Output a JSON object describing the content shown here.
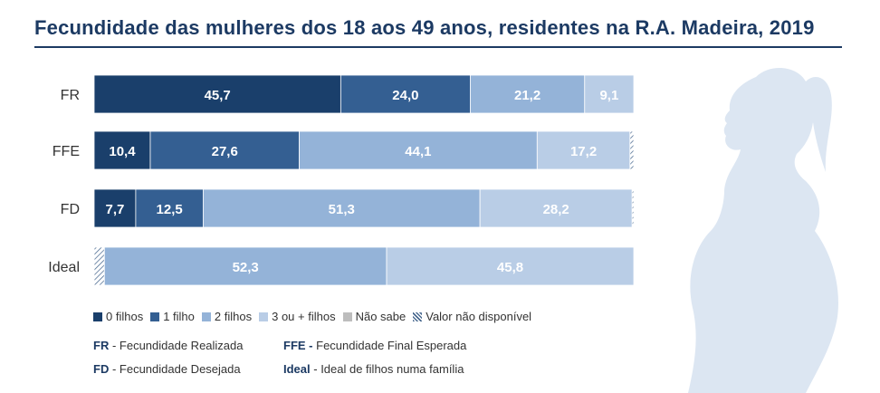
{
  "title": "Fecundidade das mulheres dos 18 aos 49 anos, residentes na R.A. Madeira, 2019",
  "chart_data": {
    "type": "bar",
    "orientation": "horizontal",
    "stacked": true,
    "title": "Fecundidade das mulheres dos 18 aos 49 anos, residentes na R.A. Madeira, 2019",
    "categories": [
      "FR",
      "FFE",
      "FD",
      "Ideal"
    ],
    "series": [
      {
        "name": "0 filhos",
        "color": "#1a3f6b",
        "values": [
          45.7,
          10.4,
          7.7,
          null
        ]
      },
      {
        "name": "1 filho",
        "color": "#345f92",
        "values": [
          24.0,
          27.6,
          12.5,
          null
        ]
      },
      {
        "name": "2 filhos",
        "color": "#94b3d8",
        "values": [
          21.2,
          44.1,
          51.3,
          52.3
        ]
      },
      {
        "name": "3 ou + filhos",
        "color": "#b9cde6",
        "values": [
          9.1,
          17.2,
          28.2,
          45.8
        ]
      },
      {
        "name": "Não sabe",
        "color": "#bdbdbd",
        "values": [
          null,
          null,
          null,
          null
        ]
      },
      {
        "name": "Valor não disponível",
        "pattern": "hatched",
        "values": [
          null,
          0.7,
          0.3,
          1.9
        ]
      }
    ],
    "data_labels": [
      [
        "45,7",
        "24,0",
        "21,2",
        "9,1"
      ],
      [
        "10,4",
        "27,6",
        "44,1",
        "17,2"
      ],
      [
        "7,7",
        "12,5",
        "51,3",
        "28,2"
      ],
      [
        "52,3",
        "45,8"
      ]
    ],
    "xlim": [
      0,
      100
    ],
    "grid": false,
    "legend_position": "bottom"
  },
  "notes": [
    {
      "abbr": "FR",
      "sep": " - ",
      "text": "Fecundidade Realizada"
    },
    {
      "abbr": "FFE -",
      "sep": " ",
      "text": "Fecundidade Final Esperada"
    },
    {
      "abbr": "FD",
      "sep": " - ",
      "text": "Fecundidade Desejada"
    },
    {
      "abbr": "Ideal",
      "sep": " - ",
      "text": "Ideal de filhos numa família"
    }
  ]
}
